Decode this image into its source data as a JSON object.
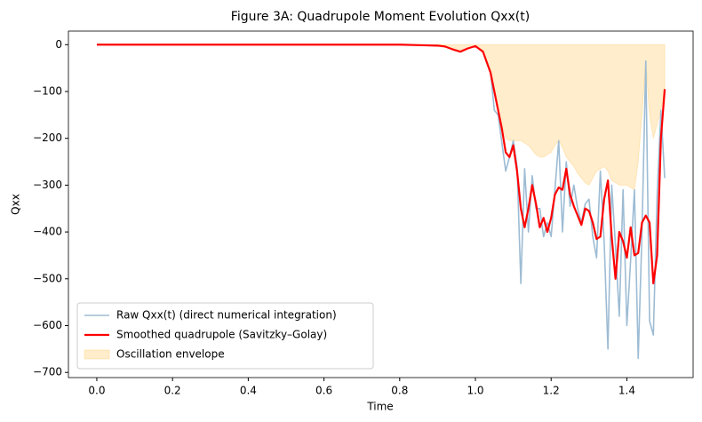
{
  "chart_data": {
    "type": "line",
    "title": "Figure 3A: Quadrupole Moment Evolution Qxx(t)",
    "xlabel": "Time",
    "ylabel": "Qxx",
    "x": [
      0,
      0.2,
      0.4,
      0.6,
      0.8,
      0.85,
      0.9,
      0.92,
      0.94,
      0.96,
      0.98,
      1.0,
      1.02,
      1.04,
      1.05,
      1.06,
      1.07,
      1.08,
      1.09,
      1.1,
      1.11,
      1.12,
      1.13,
      1.14,
      1.15,
      1.16,
      1.17,
      1.18,
      1.19,
      1.2,
      1.21,
      1.22,
      1.23,
      1.24,
      1.25,
      1.26,
      1.27,
      1.28,
      1.29,
      1.3,
      1.31,
      1.32,
      1.33,
      1.34,
      1.35,
      1.36,
      1.37,
      1.38,
      1.39,
      1.4,
      1.41,
      1.42,
      1.43,
      1.44,
      1.45,
      1.46,
      1.47,
      1.48,
      1.49,
      1.5
    ],
    "series": [
      {
        "name": "Raw Qxx(t) (direct numerical integration)",
        "color": "#9dbcd4",
        "kind": "line",
        "values": [
          0,
          0,
          0,
          0,
          0,
          -1,
          -2,
          -4,
          -10,
          -15,
          -8,
          -3,
          -15,
          -60,
          -140,
          -150,
          -210,
          -270,
          -240,
          -205,
          -260,
          -510,
          -265,
          -400,
          -280,
          -350,
          -350,
          -410,
          -380,
          -410,
          -310,
          -205,
          -400,
          -250,
          -345,
          -300,
          -350,
          -380,
          -340,
          -330,
          -410,
          -455,
          -270,
          -420,
          -650,
          -300,
          -430,
          -580,
          -310,
          -600,
          -460,
          -310,
          -670,
          -400,
          -35,
          -590,
          -620,
          -320,
          -140,
          -285
        ]
      },
      {
        "name": "Smoothed quadrupole (Savitzky–Golay)",
        "color": "#ff0000",
        "kind": "line",
        "values": [
          0,
          0,
          0,
          0,
          0,
          -1,
          -2,
          -4,
          -10,
          -15,
          -8,
          -3,
          -15,
          -60,
          -100,
          -140,
          -180,
          -230,
          -240,
          -215,
          -270,
          -350,
          -390,
          -350,
          -300,
          -340,
          -390,
          -370,
          -400,
          -370,
          -320,
          -305,
          -310,
          -265,
          -320,
          -345,
          -365,
          -385,
          -350,
          -355,
          -380,
          -415,
          -410,
          -330,
          -290,
          -410,
          -500,
          -400,
          -420,
          -455,
          -390,
          -450,
          -445,
          -380,
          -365,
          -380,
          -510,
          -450,
          -200,
          -95
        ]
      },
      {
        "name": "Oscillation envelope",
        "color": "#ffa500",
        "kind": "area",
        "fill_to": 0,
        "values": [
          0,
          0,
          0,
          0,
          0,
          0,
          -1,
          -4,
          -10,
          -14,
          -8,
          -3,
          -12,
          -55,
          -100,
          -140,
          -170,
          -200,
          -205,
          -205,
          -205,
          -205,
          -210,
          -215,
          -225,
          -235,
          -240,
          -240,
          -235,
          -230,
          -215,
          -205,
          -220,
          -240,
          -250,
          -260,
          -275,
          -285,
          -295,
          -300,
          -285,
          -270,
          -265,
          -260,
          -270,
          -290,
          -295,
          -300,
          -300,
          -300,
          -305,
          -310,
          -250,
          -150,
          -35,
          -150,
          -200,
          -170,
          -140,
          -100
        ]
      }
    ],
    "xlim": [
      -0.075,
      1.575
    ],
    "ylim": [
      -711,
      29
    ],
    "xticks": [
      {
        "value": 0,
        "label": "0.0"
      },
      {
        "value": 0.2,
        "label": "0.2"
      },
      {
        "value": 0.4,
        "label": "0.4"
      },
      {
        "value": 0.6,
        "label": "0.6"
      },
      {
        "value": 0.8,
        "label": "0.8"
      },
      {
        "value": 1.0,
        "label": "1.0"
      },
      {
        "value": 1.2,
        "label": "1.2"
      },
      {
        "value": 1.4,
        "label": "1.4"
      }
    ],
    "yticks": [
      {
        "value": -700,
        "label": "−700"
      },
      {
        "value": -600,
        "label": "−600"
      },
      {
        "value": -500,
        "label": "−500"
      },
      {
        "value": -400,
        "label": "−400"
      },
      {
        "value": -300,
        "label": "−300"
      },
      {
        "value": -200,
        "label": "−200"
      },
      {
        "value": -100,
        "label": "−100"
      },
      0
    ],
    "legend": "lower left",
    "grid": false
  }
}
